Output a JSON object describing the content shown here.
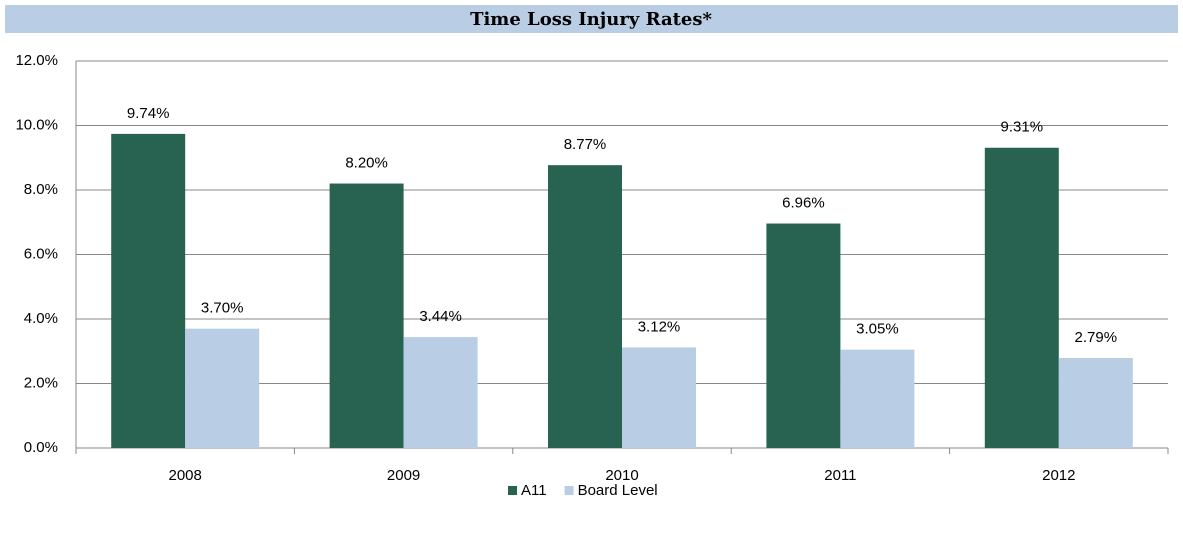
{
  "chart_data": {
    "type": "bar",
    "title": "Time Loss Injury Rates*",
    "categories": [
      "2008",
      "2009",
      "2010",
      "2011",
      "2012"
    ],
    "series": [
      {
        "name": "A11",
        "color": "#276350",
        "values": [
          9.74,
          8.2,
          8.77,
          6.96,
          9.31
        ],
        "value_labels": [
          "9.74%",
          "8.20%",
          "8.77%",
          "6.96%",
          "9.31%"
        ]
      },
      {
        "name": "Board Level",
        "color": "#b9cde4",
        "values": [
          3.7,
          3.44,
          3.12,
          3.05,
          2.79
        ],
        "value_labels": [
          "3.70%",
          "3.44%",
          "3.12%",
          "3.05%",
          "2.79%"
        ]
      }
    ],
    "ylim": [
      0,
      12
    ],
    "yticks": [
      {
        "value": 0,
        "label": "0.0%"
      },
      {
        "value": 2,
        "label": "2.0%"
      },
      {
        "value": 4,
        "label": "4.0%"
      },
      {
        "value": 6,
        "label": "6.0%"
      },
      {
        "value": 8,
        "label": "8.0%"
      },
      {
        "value": 10,
        "label": "10.0%"
      },
      {
        "value": 12,
        "label": "12.0%"
      }
    ],
    "grid": true,
    "legend": "bottom"
  }
}
